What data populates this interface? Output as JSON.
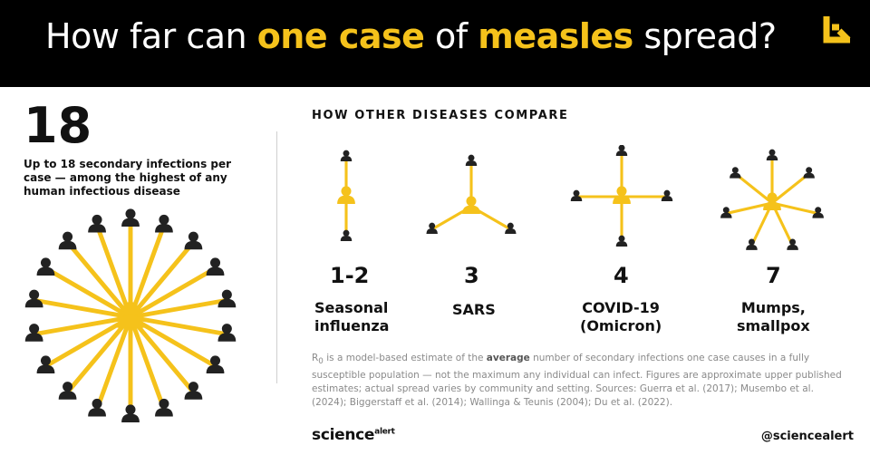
{
  "header": {
    "title_part1": "How far can ",
    "title_highlight1": "one case",
    "title_part2": " of ",
    "title_highlight2": "measles",
    "title_part3": " spread?",
    "logo_icon": "sciencealert-arrow-logo-icon",
    "accent_color": "#f5c21b",
    "background_color": "#000000"
  },
  "measles": {
    "value": "18",
    "description": "Up to 18 secondary infections per case — among the highest of any human infectious disease",
    "spokes": 18
  },
  "compare": {
    "section_label": "HOW OTHER DISEASES COMPARE",
    "diseases": [
      {
        "value": "1-2",
        "name_line1": "Seasonal",
        "name_line2": "influenza",
        "spokes": 2
      },
      {
        "value": "3",
        "name_line1": "SARS",
        "name_line2": "",
        "spokes": 3
      },
      {
        "value": "4",
        "name_line1": "COVID-19",
        "name_line2": "(Omicron)",
        "spokes": 4
      },
      {
        "value": "7",
        "name_line1": "Mumps,",
        "name_line2": "smallpox",
        "spokes": 7
      }
    ]
  },
  "footnote": {
    "r_symbol": "R",
    "r_sub": "0",
    "text1": " is a model-based estimate of the ",
    "emphasis": "average",
    "text2": " number of secondary infections one case causes in a fully susceptible population — not the maximum any individual can infect. Figures are approximate upper published estimates; actual spread varies by community and setting. Sources: Guerra et al. (2017); Musembo et al. (2024); Biggerstaff et al. (2014); Wallinga & Teunis (2004); Du et al. (2022)."
  },
  "footer": {
    "brand_main": "science",
    "brand_sup": "alert",
    "handle": "@sciencealert"
  },
  "colors": {
    "spoke": "#f5c21b",
    "person": "#222222",
    "text": "#111111",
    "muted": "#8a8a8a"
  }
}
